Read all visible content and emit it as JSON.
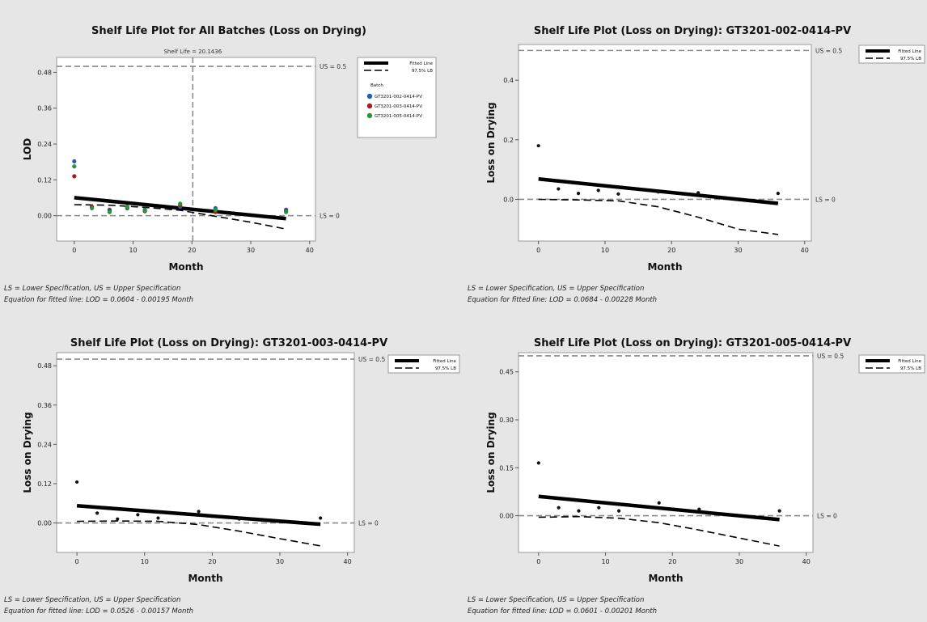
{
  "chart_data": [
    {
      "type": "scatter",
      "title": "Shelf Life Plot for All Batches (Loss on Drying)",
      "subtitle": "Shelf Life = 20.1436",
      "xlabel": "Month",
      "ylabel": "LOD",
      "xlim": [
        -3,
        41
      ],
      "ylim": [
        -0.085,
        0.53
      ],
      "xticks": [
        0,
        10,
        20,
        30,
        40
      ],
      "yticks": [
        0.0,
        0.12,
        0.24,
        0.36,
        0.48
      ],
      "ytick_labels": [
        "0.00",
        "0.12",
        "0.24",
        "0.36",
        "0.48"
      ],
      "xtick_labels": [
        "0",
        "10",
        "20",
        "30",
        "40"
      ],
      "upper_spec": 0.5,
      "lower_spec": 0,
      "upper_spec_label": "US = 0.5",
      "lower_spec_label": "LS = 0",
      "shelf_life": 20.1436,
      "fitted_line": {
        "intercept": 0.0604,
        "slope": -0.00195,
        "x": [
          0,
          36
        ]
      },
      "lower_bound": {
        "x": [
          0,
          6,
          12,
          18,
          24,
          30,
          36
        ],
        "y": [
          0.037,
          0.035,
          0.028,
          0.018,
          -0.002,
          -0.022,
          -0.045
        ]
      },
      "legend": {
        "fitted_label": "Fitted Line",
        "bound_label": "97.5% LB",
        "batch_header": "Batch",
        "position": "top-right"
      },
      "series": [
        {
          "name": "GT3201-002-0414-PV",
          "color": "#1f5fb4",
          "x": [
            0,
            3,
            6,
            9,
            12,
            18,
            24,
            36
          ],
          "y": [
            0.182,
            0.03,
            0.02,
            0.03,
            0.02,
            0.03,
            0.025,
            0.02
          ]
        },
        {
          "name": "GT3201-003-0414-PV",
          "color": "#a31f1f",
          "x": [
            0,
            3,
            6,
            9,
            12,
            18,
            24,
            36
          ],
          "y": [
            0.132,
            0.028,
            0.016,
            0.025,
            0.015,
            0.035,
            0.012,
            0.015
          ]
        },
        {
          "name": "GT3201-005-0414-PV",
          "color": "#1f9a3a",
          "x": [
            0,
            3,
            6,
            9,
            12,
            18,
            24,
            36
          ],
          "y": [
            0.165,
            0.025,
            0.012,
            0.028,
            0.018,
            0.04,
            0.02,
            0.012
          ]
        }
      ],
      "notes": [
        "LS = Lower Specification, US = Upper Specification",
        "Equation for fitted line: LOD = 0.0604 - 0.00195 Month"
      ]
    },
    {
      "type": "scatter",
      "title": "Shelf Life Plot (Loss on Drying): GT3201-002-0414-PV",
      "xlabel": "Month",
      "ylabel": "Loss on Drying",
      "xlim": [
        -3,
        41
      ],
      "ylim": [
        -0.14,
        0.52
      ],
      "xticks": [
        0,
        10,
        20,
        30,
        40
      ],
      "yticks": [
        0.0,
        0.2,
        0.4
      ],
      "ytick_labels": [
        "0.0",
        "0.2",
        "0.4"
      ],
      "xtick_labels": [
        "0",
        "10",
        "20",
        "30",
        "40"
      ],
      "upper_spec": 0.5,
      "lower_spec": 0,
      "upper_spec_label": "US = 0.5",
      "lower_spec_label": "LS = 0",
      "fitted_line": {
        "intercept": 0.0684,
        "slope": -0.00228,
        "x": [
          0,
          36
        ]
      },
      "lower_bound": {
        "x": [
          0,
          6,
          12,
          18,
          24,
          30,
          36
        ],
        "y": [
          0.0,
          -0.002,
          -0.005,
          -0.025,
          -0.06,
          -0.1,
          -0.118
        ]
      },
      "legend": {
        "fitted_label": "Fitted Line",
        "bound_label": "97.5% LB",
        "position": "top-right"
      },
      "series": [
        {
          "name": "",
          "color": "#111111",
          "x": [
            0,
            3,
            6,
            9,
            12,
            18,
            24,
            36
          ],
          "y": [
            0.18,
            0.035,
            0.02,
            0.03,
            0.018,
            0.025,
            0.022,
            0.02
          ]
        }
      ],
      "notes": [
        "LS = Lower Specification, US = Upper Specification",
        "Equation for fitted line: LOD = 0.0684 - 0.00228 Month"
      ]
    },
    {
      "type": "scatter",
      "title": "Shelf Life Plot (Loss on Drying): GT3201-003-0414-PV",
      "xlabel": "Month",
      "ylabel": "Loss on Drying",
      "xlim": [
        -3,
        41
      ],
      "ylim": [
        -0.09,
        0.52
      ],
      "xticks": [
        0,
        10,
        20,
        30,
        40
      ],
      "yticks": [
        0.0,
        0.12,
        0.24,
        0.36,
        0.48
      ],
      "ytick_labels": [
        "0.00",
        "0.12",
        "0.24",
        "0.36",
        "0.48"
      ],
      "xtick_labels": [
        "0",
        "10",
        "20",
        "30",
        "40"
      ],
      "upper_spec": 0.5,
      "lower_spec": 0,
      "upper_spec_label": "US = 0.5",
      "lower_spec_label": "LS = 0",
      "fitted_line": {
        "intercept": 0.0526,
        "slope": -0.00157,
        "x": [
          0,
          36
        ]
      },
      "lower_bound": {
        "x": [
          0,
          6,
          12,
          18,
          24,
          30,
          36
        ],
        "y": [
          0.005,
          0.006,
          0.005,
          -0.005,
          -0.025,
          -0.048,
          -0.07
        ]
      },
      "legend": {
        "fitted_label": "Fitted Line",
        "bound_label": "97.5% LB",
        "position": "top-right"
      },
      "series": [
        {
          "name": "",
          "color": "#111111",
          "x": [
            0,
            3,
            6,
            9,
            12,
            18,
            24,
            36
          ],
          "y": [
            0.125,
            0.03,
            0.012,
            0.025,
            0.015,
            0.035,
            0.012,
            0.015
          ]
        }
      ],
      "notes": [
        "LS = Lower Specification, US = Upper Specification",
        "Equation for fitted line: LOD = 0.0526 - 0.00157 Month"
      ]
    },
    {
      "type": "scatter",
      "title": "Shelf Life Plot (Loss on Drying): GT3201-005-0414-PV",
      "xlabel": "Month",
      "ylabel": "Loss on Drying",
      "xlim": [
        -3,
        41
      ],
      "ylim": [
        -0.115,
        0.51
      ],
      "xticks": [
        0,
        10,
        20,
        30,
        40
      ],
      "yticks": [
        0.0,
        0.15,
        0.3,
        0.45
      ],
      "ytick_labels": [
        "0.00",
        "0.15",
        "0.30",
        "0.45"
      ],
      "xtick_labels": [
        "0",
        "10",
        "20",
        "30",
        "40"
      ],
      "upper_spec": 0.5,
      "lower_spec": 0,
      "upper_spec_label": "US = 0.5",
      "lower_spec_label": "LS = 0",
      "fitted_line": {
        "intercept": 0.0601,
        "slope": -0.00201,
        "x": [
          0,
          36
        ]
      },
      "lower_bound": {
        "x": [
          0,
          6,
          12,
          18,
          24,
          30,
          36
        ],
        "y": [
          -0.005,
          -0.003,
          -0.008,
          -0.022,
          -0.045,
          -0.07,
          -0.095
        ]
      },
      "legend": {
        "fitted_label": "Fitted Line",
        "bound_label": "97.5% LB",
        "position": "top-right"
      },
      "series": [
        {
          "name": "",
          "color": "#111111",
          "x": [
            0,
            3,
            6,
            9,
            12,
            18,
            24,
            36
          ],
          "y": [
            0.165,
            0.025,
            0.015,
            0.025,
            0.015,
            0.04,
            0.02,
            0.015
          ]
        }
      ],
      "notes": [
        "LS = Lower Specification, US = Upper Specification",
        "Equation for fitted line: LOD = 0.0601 - 0.00201 Month"
      ]
    }
  ]
}
